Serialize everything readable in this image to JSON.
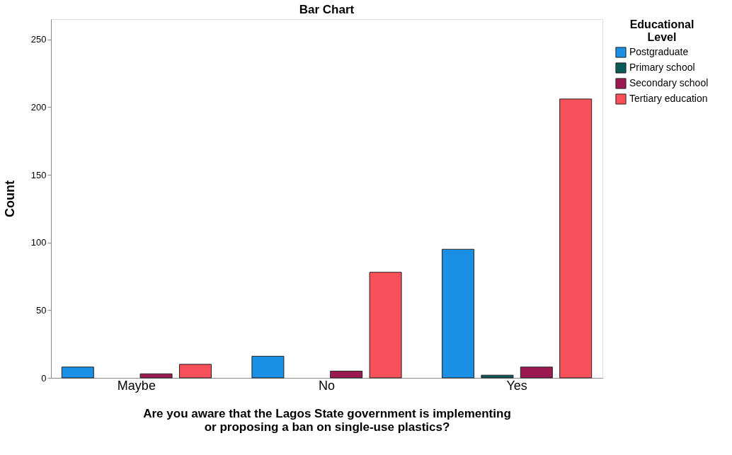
{
  "chart_data": {
    "type": "bar",
    "title": "Bar Chart",
    "xlabel": "Are you aware that the Lagos State government is implementing or proposing a ban on single-use plastics?",
    "ylabel": "Count",
    "legend_title": "Educational Level",
    "legend": "top right",
    "grid": false,
    "categories": [
      "Maybe",
      "No",
      "Yes"
    ],
    "ylim": [
      0,
      265
    ],
    "yticks": [
      0,
      50,
      100,
      150,
      200,
      250
    ],
    "series": [
      {
        "name": "Postgraduate",
        "color": "#1a8fe3",
        "values": [
          8,
          16,
          95
        ]
      },
      {
        "name": "Primary school",
        "color": "#0b5a57",
        "values": [
          null,
          null,
          2
        ]
      },
      {
        "name": "Secondary school",
        "color": "#9c1a52",
        "values": [
          3,
          5,
          8
        ]
      },
      {
        "name": "Tertiary education",
        "color": "#f8505a",
        "values": [
          10,
          78,
          206
        ]
      }
    ]
  }
}
